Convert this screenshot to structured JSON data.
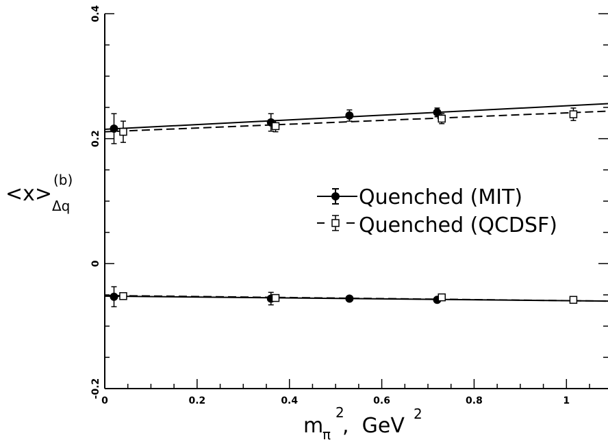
{
  "chart_data": {
    "type": "scatter",
    "xlabel": {
      "main": "m",
      "sub": "π",
      "sup": "2",
      "rest": ",  GeV",
      "rest_sup": "2"
    },
    "ylabel": {
      "main": "<x>",
      "sub": "Δq",
      "sup": "(b)"
    },
    "xlim": [
      0,
      1.09
    ],
    "ylim": [
      -0.2,
      0.4
    ],
    "x_ticks": [
      0,
      0.2,
      0.4,
      0.6,
      0.8,
      1
    ],
    "x_tick_labels": [
      "0",
      "0.2",
      "0.4",
      "0.6",
      "0.8",
      "1"
    ],
    "y_ticks": [
      -0.2,
      0,
      0.2,
      0.4
    ],
    "y_tick_labels": [
      "-0.2",
      "0",
      "0.2",
      "0.4"
    ],
    "legend": {
      "position": "right-middle",
      "entries": [
        "Quenched (MIT)",
        "Quenched (QCDSF)"
      ]
    },
    "series": [
      {
        "name": "Quenched (MIT)",
        "marker": "filled-circle",
        "line": "solid",
        "points": [
          {
            "x": 0.02,
            "y": 0.216,
            "err": 0.024
          },
          {
            "x": 0.36,
            "y": 0.226,
            "err": 0.014
          },
          {
            "x": 0.53,
            "y": 0.237,
            "err": 0.009
          },
          {
            "x": 0.72,
            "y": 0.242,
            "err": 0.007
          },
          {
            "x": 0.02,
            "y": -0.053,
            "err": 0.016
          },
          {
            "x": 0.36,
            "y": -0.056,
            "err": 0.01
          },
          {
            "x": 0.53,
            "y": -0.056,
            "err": 0.004
          },
          {
            "x": 0.72,
            "y": -0.058,
            "err": 0.003
          }
        ],
        "fits": [
          {
            "x0": 0.0,
            "y0": 0.215,
            "x1": 1.09,
            "y1": 0.256
          },
          {
            "x0": 0.0,
            "y0": -0.052,
            "x1": 1.09,
            "y1": -0.06
          }
        ]
      },
      {
        "name": "Quenched (QCDSF)",
        "marker": "open-square",
        "line": "dashed",
        "points": [
          {
            "x": 0.04,
            "y": 0.211,
            "err": 0.017
          },
          {
            "x": 0.37,
            "y": 0.22,
            "err": 0.009
          },
          {
            "x": 0.73,
            "y": 0.232,
            "err": 0.008
          },
          {
            "x": 1.015,
            "y": 0.239,
            "err": 0.01
          },
          {
            "x": 0.04,
            "y": -0.052,
            "err": 0.005
          },
          {
            "x": 0.37,
            "y": -0.055,
            "err": 0.004
          },
          {
            "x": 0.73,
            "y": -0.054,
            "err": 0.004
          },
          {
            "x": 1.015,
            "y": -0.058,
            "err": 0.003
          }
        ],
        "fits": [
          {
            "x0": 0.0,
            "y0": 0.211,
            "x1": 1.09,
            "y1": 0.244
          },
          {
            "x0": 0.0,
            "y0": -0.051,
            "x1": 1.09,
            "y1": -0.06
          }
        ]
      }
    ]
  }
}
